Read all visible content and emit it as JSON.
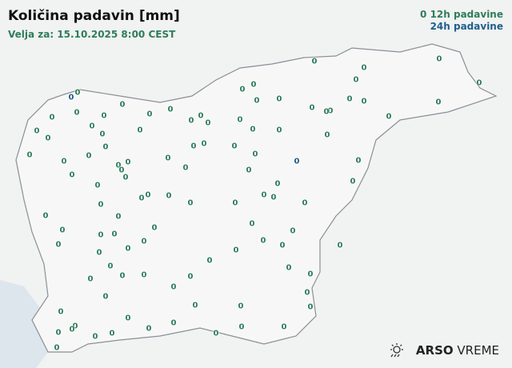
{
  "title": "Količina padavin [mm]",
  "subtitle": "Velja za: 15.10.2025 8:00 CEST",
  "legend": {
    "marker": "0",
    "label_12h": "12h padavine",
    "label_24h": "24h padavine"
  },
  "colors": {
    "12h": "#2e7d5b",
    "24h": "#1f5f8b",
    "border": "#8a8f96",
    "sea": "#dde6ec"
  },
  "logo": {
    "icon": "sun-rain-icon",
    "brand": "ARSO",
    "product": "VREME"
  },
  "stations": {
    "value_12h": "0",
    "value_24h": "0",
    "count_12h": 107,
    "count_24h": 2
  }
}
